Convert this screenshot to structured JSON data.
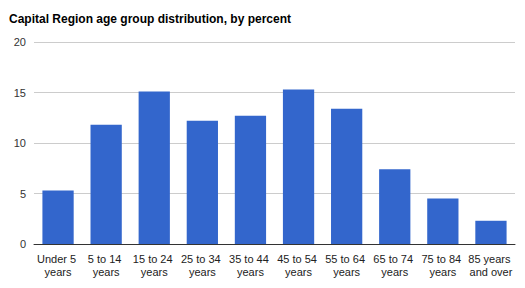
{
  "chart_data": {
    "type": "bar",
    "title": "Capital Region age group distribution, by percent",
    "categories": [
      "Under 5 years",
      "5 to 14 years",
      "15 to 24 years",
      "25 to 34 years",
      "35 to 44 years",
      "45 to 54 years",
      "55 to 64 years",
      "65 to 74 years",
      "75 to 84 years",
      "85 years and over"
    ],
    "values": [
      5.3,
      11.8,
      15.1,
      12.2,
      12.7,
      15.3,
      13.4,
      7.4,
      4.5,
      2.3
    ],
    "color": "#3366cc",
    "ylim": [
      0,
      20
    ],
    "yticks": [
      0,
      5,
      10,
      15,
      20
    ],
    "grid": true
  }
}
